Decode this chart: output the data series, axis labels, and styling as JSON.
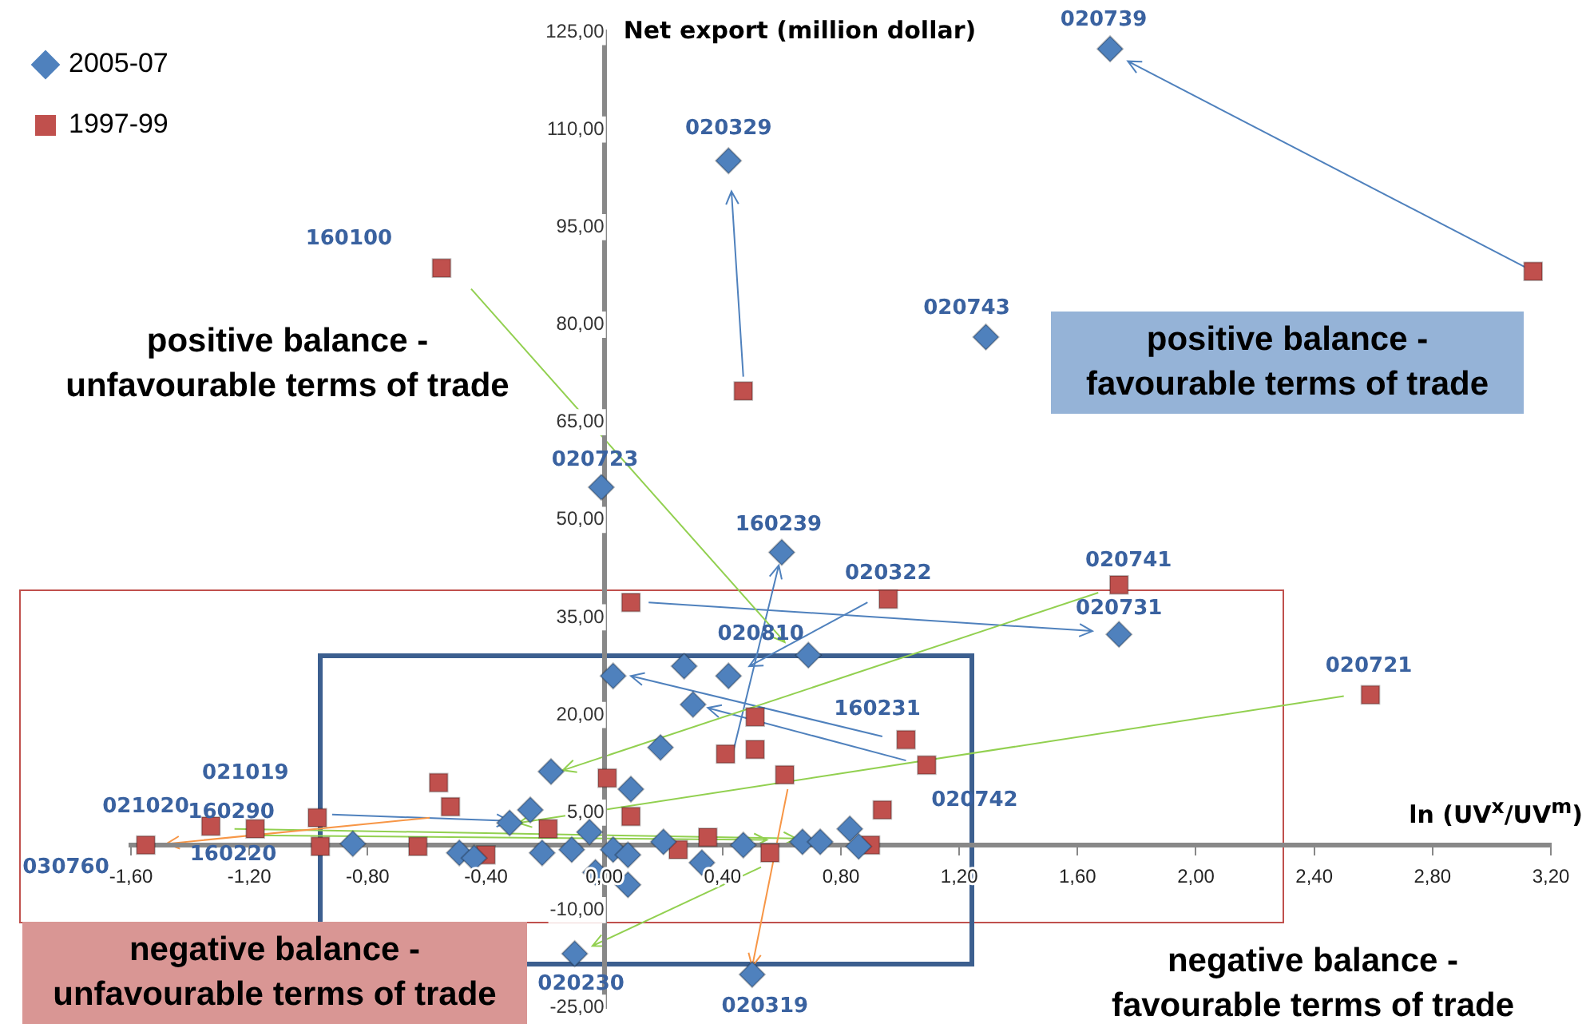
{
  "chart_data": {
    "type": "scatter",
    "xlabel": "ln (UV$^{x}$/UV$^{m}$)",
    "ylabel": "Net export (million dollar)",
    "xlim": [
      -1.6,
      3.2
    ],
    "ylim": [
      -25,
      125
    ],
    "xticks": [
      {
        "value": -1.6,
        "label": "-1,60"
      },
      {
        "value": -1.2,
        "label": "-1,20"
      },
      {
        "value": -0.8,
        "label": "-0,80"
      },
      {
        "value": -0.4,
        "label": "-0,40"
      },
      {
        "value": 0,
        "label": "0,00"
      },
      {
        "value": 0.4,
        "label": "0,40"
      },
      {
        "value": 0.8,
        "label": "0,80"
      },
      {
        "value": 1.2,
        "label": "1,20"
      },
      {
        "value": 1.6,
        "label": "1,60"
      },
      {
        "value": 2,
        "label": "2,00"
      },
      {
        "value": 2.4,
        "label": "2,40"
      },
      {
        "value": 2.8,
        "label": "2,80"
      },
      {
        "value": 3.2,
        "label": "3,20"
      }
    ],
    "yticks": [
      {
        "value": -25,
        "label": "-25,00"
      },
      {
        "value": -10,
        "label": "-10,00"
      },
      {
        "value": 5,
        "label": "5,00"
      },
      {
        "value": 20,
        "label": "20,00"
      },
      {
        "value": 35,
        "label": "35,00"
      },
      {
        "value": 50,
        "label": "50,00"
      },
      {
        "value": 65,
        "label": "65,00"
      },
      {
        "value": 80,
        "label": "80,00"
      },
      {
        "value": 95,
        "label": "95,00"
      },
      {
        "value": 110,
        "label": "110,00"
      },
      {
        "value": 125,
        "label": "125,00"
      }
    ],
    "grid": false,
    "legend": "top left",
    "series": [
      {
        "name": "2005-07",
        "marker": "diamond",
        "color": "#4f81bd",
        "x": [
          1.71,
          0.42,
          1.29,
          -0.01,
          0.6,
          1.74,
          0.69,
          0.27,
          0.42,
          0.03,
          0.3,
          0.19,
          -0.18,
          0.09,
          -0.1,
          0.5,
          -0.85,
          -0.49,
          -0.44,
          -0.32,
          -0.25,
          -0.21,
          -0.11,
          -0.05,
          -0.03,
          0.03,
          0.08,
          0.08,
          0.2,
          0.33,
          0.47,
          0.67,
          0.73,
          0.83,
          0.86
        ],
        "values": [
          122.4,
          105.2,
          78.1,
          55,
          45,
          32.4,
          29.2,
          27.5,
          26,
          26,
          21.6,
          15,
          11.3,
          8.6,
          -16.7,
          -19.9,
          0.2,
          -1.2,
          -2,
          3.4,
          5.4,
          -1.2,
          -0.7,
          2,
          -4.2,
          -0.7,
          -6.1,
          -1.5,
          0.5,
          -2.7,
          0,
          0.5,
          0.5,
          2.5,
          -0.2
        ]
      },
      {
        "name": "1997-99",
        "marker": "square",
        "color": "#c0504d",
        "x": [
          -0.55,
          0.47,
          3.14,
          0.09,
          0.96,
          1.74,
          2.59,
          1.02,
          1.09,
          0.51,
          0.51,
          0.41,
          0.61,
          0.01,
          0.09,
          0.94,
          0.9,
          0.56,
          0.35,
          0.25,
          -1.55,
          -1.33,
          -1.18,
          -0.97,
          -0.96,
          -0.56,
          -0.52,
          -0.63,
          -0.4,
          -0.19
        ],
        "values": [
          88.7,
          69.8,
          88.2,
          37.3,
          37.8,
          40,
          23.1,
          16.2,
          12.3,
          19.7,
          14.7,
          14,
          10.8,
          10.3,
          4.4,
          5.4,
          0,
          -1.2,
          1.2,
          -0.7,
          0,
          2.9,
          2.5,
          4.2,
          -0.2,
          9.6,
          5.9,
          -0.2,
          -1.5,
          2.5
        ]
      }
    ],
    "annotations": [
      "positive balance - unfavourable terms of trade",
      "positive balance - favourable terms of trade",
      "negative balance - unfavourable terms of trade",
      "negative balance - favourable terms of trade",
      {
        "text": "020739",
        "x": 1.71,
        "y": 122.4
      },
      {
        "text": "020329",
        "x": 0.42,
        "y": 105.2
      },
      {
        "text": "020743",
        "x": 1.29,
        "y": 78.1
      },
      {
        "text": "160100",
        "x": -0.55,
        "y": 88.7
      },
      {
        "text": "020723",
        "x": -0.01,
        "y": 55
      },
      {
        "text": "160239",
        "x": 0.6,
        "y": 45
      },
      {
        "text": "020322",
        "x": 0.96,
        "y": 37.8
      },
      {
        "text": "020741",
        "x": 1.74,
        "y": 40
      },
      {
        "text": "020731",
        "x": 1.74,
        "y": 32.4
      },
      {
        "text": "020721",
        "x": 2.59,
        "y": 23.1
      },
      {
        "text": "020810",
        "x": 0.27,
        "y": 27.5
      },
      {
        "text": "160231",
        "x": 1.02,
        "y": 16.2
      },
      {
        "text": "020742",
        "x": 1.09,
        "y": 12.3
      },
      {
        "text": "021019",
        "x": -0.97,
        "y": 4.2
      },
      {
        "text": "160290",
        "x": -1.18,
        "y": 2.5
      },
      {
        "text": "160220",
        "x": -1.33,
        "y": 2.9
      },
      {
        "text": "021020",
        "x": -1.55,
        "y": 0
      },
      {
        "text": "030760",
        "x": -1.55,
        "y": 0
      },
      {
        "text": "020230",
        "x": -0.1,
        "y": -16.7
      },
      {
        "text": "020319",
        "x": 0.5,
        "y": -19.9
      }
    ]
  }
}
